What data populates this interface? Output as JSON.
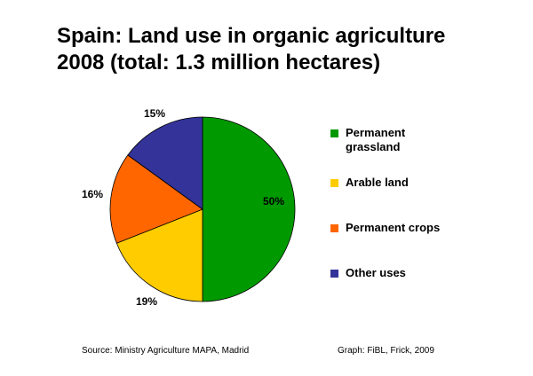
{
  "chart_data": {
    "type": "pie",
    "title_line1": "Spain: Land use in organic agriculture",
    "title_line2": "2008 (total: 1.3 million hectares)",
    "categories": [
      "Permanent grassland",
      "Arable land",
      "Permanent crops",
      "Other uses"
    ],
    "values": [
      50,
      19,
      16,
      15
    ],
    "value_labels": [
      "50%",
      "19%",
      "16%",
      "15%"
    ],
    "colors": [
      "#009900",
      "#ffcc00",
      "#ff6600",
      "#333399"
    ],
    "legend_position": "right"
  },
  "legend": [
    {
      "label": "Permanent grassland",
      "color": "#009900"
    },
    {
      "label": "Arable land",
      "color": "#ffcc00"
    },
    {
      "label": "Permanent crops",
      "color": "#ff6600"
    },
    {
      "label": "Other uses",
      "color": "#333399"
    }
  ],
  "footer": {
    "source": "Source: Ministry Agriculture MAPA, Madrid",
    "credit": "Graph: FiBL, Frick, 2009"
  }
}
